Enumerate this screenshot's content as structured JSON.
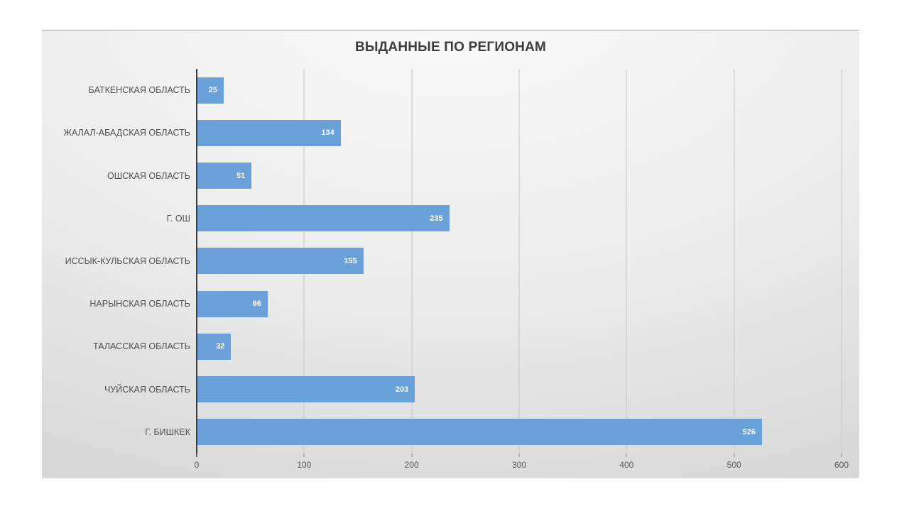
{
  "page": {
    "background_color": "#ffffff"
  },
  "chart_data": {
    "type": "bar",
    "orientation": "horizontal",
    "title": "ВЫДАННЫЕ ПО РЕГИОНАМ",
    "categories": [
      "БАТКЕНСКАЯ ОБЛАСТЬ",
      "ЖАЛАЛ-АБАДСКАЯ ОБЛАСТЬ",
      "ОШСКАЯ ОБЛАСТЬ",
      "Г. ОШ",
      "ИССЫК-КУЛЬСКАЯ ОБЛАСТЬ",
      "НАРЫНСКАЯ ОБЛАСТЬ",
      "ТАЛАССКАЯ ОБЛАСТЬ",
      "ЧУЙСКАЯ ОБЛАСТЬ",
      "Г. БИШКЕК"
    ],
    "values": [
      25,
      134,
      51,
      235,
      155,
      66,
      32,
      203,
      526
    ],
    "xlabel": "",
    "ylabel": "",
    "xlim": [
      0,
      600
    ],
    "x_ticks": [
      0,
      100,
      200,
      300,
      400,
      500,
      600
    ],
    "grid": true,
    "legend": false,
    "data_labels": "inside-end",
    "bar_color": "#6ba1d9",
    "value_label_color": "#ffffff",
    "title_color": "#3d3d3d",
    "axis_line_color": "#3f3f3f",
    "gridline_color": "#c6c6c6",
    "tick_label_color": "#595959",
    "category_label_color": "#4f4f4f"
  }
}
